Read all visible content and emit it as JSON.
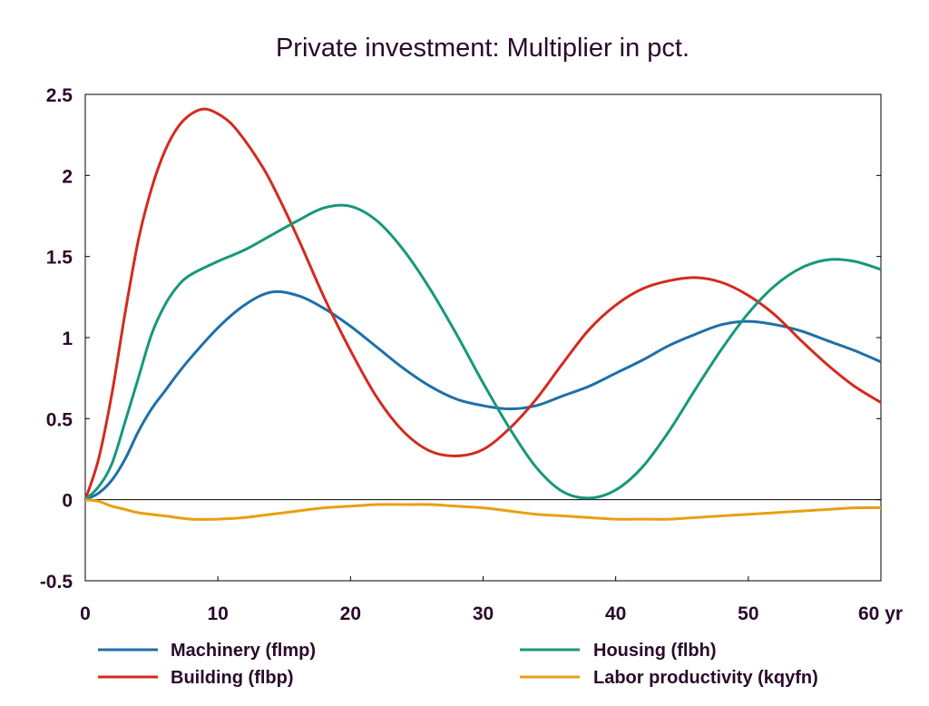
{
  "chart_data": {
    "type": "line",
    "title": "Private investment: Multiplier in pct.",
    "xlabel": "",
    "ylabel": "",
    "xlim": [
      0,
      60
    ],
    "ylim": [
      -0.5,
      2.5
    ],
    "x_ticks": [
      {
        "value": 0,
        "label": "0"
      },
      {
        "value": 10,
        "label": "10"
      },
      {
        "value": 20,
        "label": "20"
      },
      {
        "value": 30,
        "label": "30"
      },
      {
        "value": 40,
        "label": "40"
      },
      {
        "value": 50,
        "label": "50"
      },
      {
        "value": 60,
        "label": "60 yr"
      }
    ],
    "y_ticks": [
      {
        "value": 2.5,
        "label": "2.5"
      },
      {
        "value": 2,
        "label": "2"
      },
      {
        "value": 1.5,
        "label": "1.5"
      },
      {
        "value": 1,
        "label": "1"
      },
      {
        "value": 0.5,
        "label": "0.5"
      },
      {
        "value": 0,
        "label": "0"
      },
      {
        "value": -0.5,
        "label": "-0.5"
      }
    ],
    "zero_line": true,
    "grid": false,
    "legend_position": "bottom",
    "series": [
      {
        "name": "Machinery (flmp)",
        "color": "#1f6fa8",
        "x": [
          0,
          1,
          2,
          3,
          4,
          5,
          6,
          7,
          8,
          10,
          12,
          14,
          16,
          18,
          20,
          22,
          24,
          26,
          28,
          30,
          32,
          34,
          36,
          38,
          40,
          42,
          44,
          46,
          48,
          50,
          52,
          54,
          56,
          58,
          60
        ],
        "y": [
          0,
          0.04,
          0.12,
          0.25,
          0.42,
          0.56,
          0.67,
          0.78,
          0.88,
          1.06,
          1.2,
          1.28,
          1.26,
          1.18,
          1.07,
          0.94,
          0.81,
          0.7,
          0.62,
          0.58,
          0.56,
          0.58,
          0.64,
          0.7,
          0.78,
          0.86,
          0.95,
          1.02,
          1.08,
          1.1,
          1.08,
          1.04,
          0.98,
          0.92,
          0.85
        ]
      },
      {
        "name": "Building (flbp)",
        "color": "#d42a1f",
        "x": [
          0,
          1,
          2,
          3,
          4,
          5,
          6,
          7,
          8,
          9,
          10,
          11,
          12,
          13,
          14,
          16,
          18,
          20,
          22,
          24,
          26,
          28,
          30,
          32,
          34,
          36,
          38,
          40,
          42,
          44,
          46,
          48,
          50,
          52,
          54,
          56,
          58,
          60
        ],
        "y": [
          0,
          0.25,
          0.65,
          1.15,
          1.6,
          1.92,
          2.15,
          2.3,
          2.38,
          2.41,
          2.38,
          2.32,
          2.22,
          2.1,
          1.96,
          1.62,
          1.25,
          0.92,
          0.63,
          0.42,
          0.3,
          0.27,
          0.31,
          0.44,
          0.62,
          0.84,
          1.05,
          1.2,
          1.3,
          1.35,
          1.37,
          1.34,
          1.26,
          1.14,
          0.98,
          0.83,
          0.7,
          0.6
        ]
      },
      {
        "name": "Housing (flbh)",
        "color": "#17987a",
        "x": [
          0,
          1,
          2,
          3,
          4,
          5,
          6,
          7,
          8,
          10,
          12,
          14,
          16,
          18,
          20,
          22,
          24,
          26,
          28,
          30,
          32,
          34,
          36,
          38,
          40,
          42,
          44,
          46,
          48,
          50,
          52,
          54,
          56,
          58,
          60
        ],
        "y": [
          0,
          0.08,
          0.22,
          0.48,
          0.75,
          1.02,
          1.2,
          1.32,
          1.39,
          1.47,
          1.54,
          1.63,
          1.72,
          1.8,
          1.81,
          1.72,
          1.54,
          1.3,
          1.02,
          0.72,
          0.44,
          0.2,
          0.05,
          0.01,
          0.06,
          0.2,
          0.42,
          0.68,
          0.93,
          1.15,
          1.32,
          1.43,
          1.48,
          1.47,
          1.42
        ]
      },
      {
        "name": "Labor productivity (kqyfn)",
        "color": "#e8a010",
        "x": [
          0,
          1,
          2,
          3,
          4,
          6,
          8,
          10,
          12,
          14,
          16,
          18,
          20,
          22,
          24,
          26,
          28,
          30,
          32,
          34,
          36,
          38,
          40,
          42,
          44,
          46,
          48,
          50,
          52,
          54,
          56,
          58,
          60
        ],
        "y": [
          0,
          -0.01,
          -0.04,
          -0.06,
          -0.08,
          -0.1,
          -0.12,
          -0.12,
          -0.11,
          -0.09,
          -0.07,
          -0.05,
          -0.04,
          -0.03,
          -0.03,
          -0.03,
          -0.04,
          -0.05,
          -0.07,
          -0.09,
          -0.1,
          -0.11,
          -0.12,
          -0.12,
          -0.12,
          -0.11,
          -0.1,
          -0.09,
          -0.08,
          -0.07,
          -0.06,
          -0.05,
          -0.05
        ]
      }
    ]
  },
  "legend": {
    "items": [
      {
        "label": "Machinery (flmp)",
        "color": "#1f6fa8"
      },
      {
        "label": "Housing (flbh)",
        "color": "#17987a"
      },
      {
        "label": "Building (flbp)",
        "color": "#d42a1f"
      },
      {
        "label": "Labor productivity (kqyfn)",
        "color": "#e8a010"
      }
    ]
  }
}
